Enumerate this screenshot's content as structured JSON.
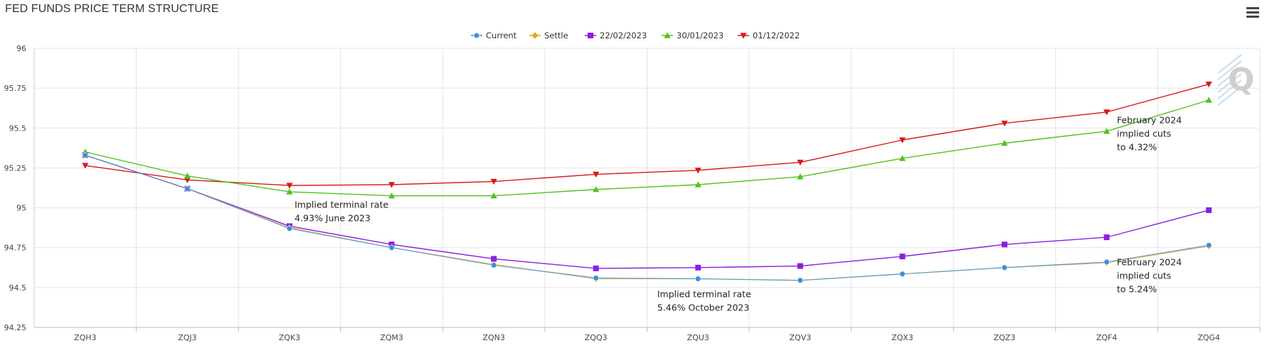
{
  "header": {
    "title": "FED FUNDS PRICE TERM STRUCTURE",
    "menu_icon": "hamburger-menu-icon"
  },
  "watermark": {
    "text": "Q"
  },
  "chart_data": {
    "type": "line",
    "title": "FED FUNDS PRICE TERM STRUCTURE",
    "xlabel": "",
    "ylabel": "",
    "categories": [
      "ZQH3",
      "ZQJ3",
      "ZQK3",
      "ZQM3",
      "ZQN3",
      "ZQQ3",
      "ZQU3",
      "ZQV3",
      "ZQX3",
      "ZQZ3",
      "ZQF4",
      "ZQG4"
    ],
    "ylim": [
      94.25,
      96
    ],
    "yticks": [
      94.25,
      94.5,
      94.75,
      95,
      95.25,
      95.5,
      95.75,
      96
    ],
    "ytick_labels": [
      "94.25",
      "94.5",
      "94.75",
      "95",
      "95.25",
      "95.5",
      "95.75",
      "96"
    ],
    "grid": true,
    "legend_position": "top-center",
    "series": [
      {
        "name": "Current",
        "color": "#3b8fd9",
        "marker": "circle",
        "values": [
          95.33,
          95.12,
          94.87,
          94.75,
          94.64,
          94.56,
          94.555,
          94.545,
          94.585,
          94.625,
          94.66,
          94.765
        ]
      },
      {
        "name": "Settle",
        "color": "#e8a317",
        "marker": "diamond",
        "values": [
          95.33,
          95.12,
          94.875,
          94.75,
          94.645,
          94.555,
          94.555,
          94.545,
          94.585,
          94.625,
          94.655,
          94.76
        ]
      },
      {
        "name": "22/02/2023",
        "color": "#8a1fe0",
        "marker": "square",
        "values": [
          95.33,
          95.12,
          94.885,
          94.77,
          94.68,
          94.62,
          94.625,
          94.635,
          94.695,
          94.77,
          94.815,
          94.985
        ]
      },
      {
        "name": "30/01/2023",
        "color": "#4fc31c",
        "marker": "triangle-up",
        "values": [
          95.35,
          95.2,
          95.1,
          95.075,
          95.075,
          95.115,
          95.145,
          95.195,
          95.31,
          95.405,
          95.48,
          95.675
        ]
      },
      {
        "name": "01/12/2022",
        "color": "#d7191c",
        "marker": "triangle-down",
        "values": [
          95.265,
          95.175,
          95.14,
          95.145,
          95.165,
          95.21,
          95.235,
          95.285,
          95.425,
          95.53,
          95.6,
          95.775
        ]
      }
    ],
    "annotations": [
      {
        "id": "june",
        "lines": [
          "Implied terminal rate",
          "4.93% June 2023"
        ]
      },
      {
        "id": "october",
        "lines": [
          "Implied terminal rate",
          "5.46% October 2023"
        ]
      },
      {
        "id": "feb-upper",
        "lines": [
          "February 2024",
          "implied cuts",
          "to 4.32%"
        ]
      },
      {
        "id": "feb-lower",
        "lines": [
          "February 2024",
          "implied cuts",
          "to 5.24%"
        ]
      }
    ]
  }
}
